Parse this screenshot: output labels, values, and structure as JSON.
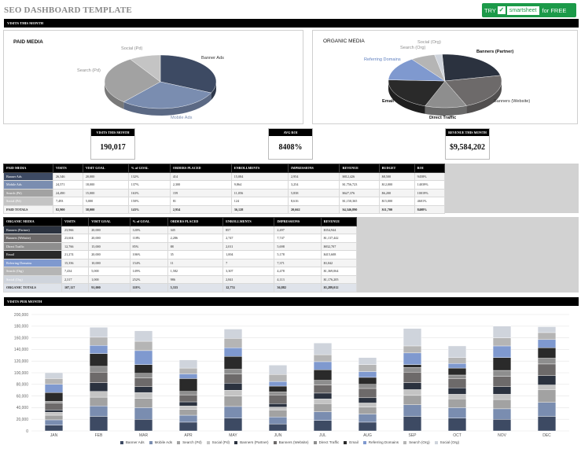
{
  "header": {
    "title": "SEO DASHBOARD TEMPLATE",
    "cta_try": "TRY",
    "cta_brand": "smartsheet",
    "cta_free": "for FREE"
  },
  "sections": {
    "visits_month": "VISITS THIS MONTH",
    "visits_per_month": "VISITS PER MONTH"
  },
  "paid_pie": {
    "title": "PAID MEDIA",
    "labels": [
      "Banner Ads",
      "Mobile Ads",
      "Search (Pd)",
      "Social (Pd)"
    ],
    "values": [
      26346,
      24571,
      24490,
      7493
    ],
    "colors": [
      "#3d4a63",
      "#7a8db0",
      "#a2a2a2",
      "#c4c4c4"
    ]
  },
  "organic_pie": {
    "title": "ORGANIC MEDIA",
    "labels": [
      "Banners (Partner)",
      "Banners (Website)",
      "Direct Traffic",
      "Email",
      "Referring Domains",
      "Search (Org)",
      "Social (Org)"
    ],
    "values": [
      23966,
      23604,
      12766,
      21274,
      15356,
      7434,
      2317
    ],
    "colors": [
      "#2b323f",
      "#6d6a6a",
      "#8e8e8e",
      "#2a2a2a",
      "#7f99cf",
      "#b5b5b5",
      "#cfd4dc"
    ]
  },
  "kpis": [
    {
      "label": "VISITS THIS MONTH",
      "value": "190,017"
    },
    {
      "label": "AVG ROI",
      "value": "8408%"
    },
    {
      "label": "REVENUE THIS MONTH",
      "value": "$9,584,202"
    }
  ],
  "paid_table": {
    "headers": [
      "PAID MEDIA",
      "VISITS",
      "VISIT GOAL",
      "% of GOAL",
      "ORDERS PLACED",
      "ENROLLMENTS",
      "IMPRESSIONS",
      "REVENUE",
      "BUDGET",
      "ROI"
    ],
    "rows": [
      [
        "Banner Ads",
        "26,346",
        "20,000",
        "132%",
        "414",
        "15,084",
        "2,954",
        "$812,426",
        "$8,500",
        "9458%"
      ],
      [
        "Mobile Ads",
        "24,571",
        "18,000",
        "137%",
        "2,300",
        "9,864",
        "3,254",
        "$1,756,723",
        "$12,000",
        "14039%"
      ],
      [
        "Search (Pd)",
        "24,490",
        "15,000",
        "163%",
        "159",
        "11,056",
        "5,838",
        "$627,376",
        "$6,200",
        "10019%"
      ],
      [
        "Social (Pd)",
        "7,493",
        "5,000",
        "150%",
        "81",
        "124",
        "8,616",
        "$1,150,365",
        "$15,000",
        "4601%"
      ]
    ],
    "total": [
      "PAID TOTALS",
      "82,900",
      "58,000",
      "143%",
      "2,954",
      "36,128",
      "20,662",
      "$4,346,890",
      "$11,700",
      "8408%"
    ]
  },
  "organic_table": {
    "headers": [
      "ORGANIC MEDIA",
      "VISITS",
      "VISIT GOAL",
      "% of GOAL",
      "ORDERS PLACED",
      "ENROLLMENTS",
      "IMPRESSIONS",
      "REVENUE"
    ],
    "rows": [
      [
        "Banners (Partner)",
        "23,966",
        "20,000",
        "120%",
        "345",
        "857",
        "2,497",
        "$354,944"
      ],
      [
        "Banners (Website)",
        "23,604",
        "20,000",
        "118%",
        "2,286",
        "2,747",
        "7,747",
        "$1,137,442"
      ],
      [
        "Direct Traffic",
        "12,766",
        "15,000",
        "85%",
        "88",
        "2,011",
        "5,698",
        "$832,707"
      ],
      [
        "Email",
        "21,274",
        "20,000",
        "106%",
        "35",
        "1,004",
        "5,178",
        "$415,608"
      ],
      [
        "Referring Domains",
        "15,356",
        "10,000",
        "154%",
        "11",
        "7",
        "7,371",
        "$3,042"
      ],
      [
        "Search (Org)",
        "7,434",
        "5,000",
        "149%",
        "1,582",
        "3,307",
        "4,478",
        "$1,369,064"
      ],
      [
        "Social (Org)",
        "2,317",
        "1,000",
        "252%",
        "986",
        "2,841",
        "4,113",
        "$1,176,205"
      ]
    ],
    "total": [
      "ORGANIC TOTALS",
      "107,117",
      "91,000",
      "118%",
      "5,333",
      "12,774",
      "36,882",
      "$5,289,012"
    ]
  },
  "chart_data": {
    "type": "bar",
    "stacked": true,
    "categories": [
      "JAN",
      "FEB",
      "MAR",
      "APR",
      "MAY",
      "JUN",
      "JUL",
      "AUG",
      "SEP",
      "OCT",
      "NOV",
      "DEC"
    ],
    "ylim": [
      0,
      200000
    ],
    "yticks": [
      "0",
      "20,000",
      "40,000",
      "60,000",
      "80,000",
      "100,000",
      "120,000",
      "140,000",
      "160,000",
      "180,000",
      "200,000"
    ],
    "legend_position": "bottom",
    "series": [
      {
        "name": "Banner Ads",
        "color": "#3d4a63",
        "values": [
          10000,
          25000,
          20000,
          15000,
          22000,
          12000,
          18000,
          15000,
          25000,
          22000,
          20000,
          25000
        ]
      },
      {
        "name": "Mobile Ads",
        "color": "#7a8db0",
        "values": [
          9000,
          18000,
          20000,
          12000,
          20000,
          12000,
          15000,
          14000,
          20000,
          18000,
          18000,
          24000
        ]
      },
      {
        "name": "Search (Pd)",
        "color": "#a2a2a2",
        "values": [
          8000,
          15000,
          16000,
          10000,
          18000,
          12000,
          14000,
          12000,
          16000,
          15000,
          16000,
          22000
        ]
      },
      {
        "name": "Social (Pd)",
        "color": "#c4c4c4",
        "values": [
          5000,
          10000,
          10000,
          6000,
          10000,
          5000,
          8000,
          7000,
          10000,
          8000,
          9000,
          8000
        ]
      },
      {
        "name": "Banners (Partner)",
        "color": "#2b323f",
        "values": [
          4000,
          15000,
          10000,
          7000,
          12000,
          6000,
          10000,
          9000,
          12000,
          11000,
          13000,
          16000
        ]
      },
      {
        "name": "Banners (Website)",
        "color": "#6d6a6a",
        "values": [
          12000,
          18000,
          15000,
          12000,
          16000,
          15000,
          14000,
          16000,
          18000,
          16000,
          18000,
          20000
        ]
      },
      {
        "name": "Direct Traffic",
        "color": "#8e8e8e",
        "values": [
          3000,
          10000,
          8000,
          6000,
          8000,
          5000,
          8000,
          7000,
          8000,
          6000,
          10000,
          10000
        ]
      },
      {
        "name": "Email",
        "color": "#2a2a2a",
        "values": [
          15000,
          22000,
          15000,
          22000,
          22000,
          10000,
          18000,
          12000,
          5000,
          12000,
          22000,
          18000
        ]
      },
      {
        "name": "Referring Domains",
        "color": "#7f99cf",
        "values": [
          14000,
          14000,
          24000,
          8000,
          15000,
          8000,
          14000,
          10000,
          20000,
          8000,
          20000,
          14000
        ]
      },
      {
        "name": "Search (Org)",
        "color": "#b5b5b5",
        "values": [
          10000,
          14000,
          16000,
          10000,
          16000,
          12000,
          12000,
          12000,
          12000,
          10000,
          14000,
          12000
        ]
      },
      {
        "name": "Social (Org)",
        "color": "#cfd4dc",
        "values": [
          10000,
          17000,
          18000,
          14000,
          16000,
          16000,
          20000,
          12000,
          30000,
          20000,
          20000,
          10000
        ]
      }
    ]
  }
}
